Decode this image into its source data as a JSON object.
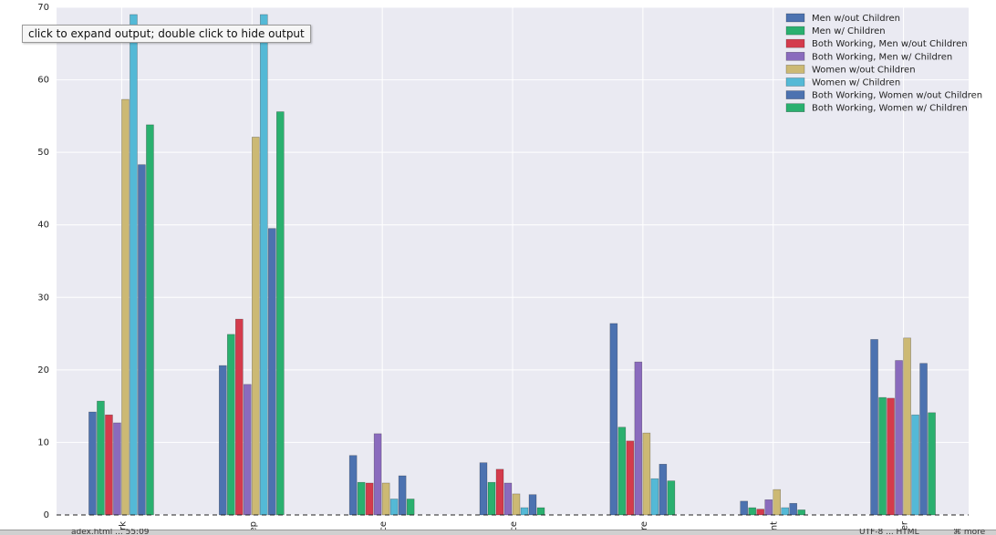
{
  "tooltip": {
    "text": "click to expand output; double click to hide output"
  },
  "status_bar": {
    "left": "adex.html ... 55:09",
    "right": "UTF-8 ... HTML",
    "far_right": "⌘ more"
  },
  "colors": {
    "plot_bg": "#eaeaf2",
    "grid": "#ffffff"
  },
  "chart_data": {
    "type": "bar",
    "title": "",
    "xlabel": "",
    "ylabel": "",
    "ylim": [
      0,
      70
    ],
    "yticks": [
      0,
      10,
      20,
      30,
      40,
      50,
      60,
      70
    ],
    "grid": true,
    "legend_position": "top-right",
    "baseline_style": "dashed",
    "categories": [
      "rk",
      "ep",
      "ce",
      "ce",
      "re",
      "nt",
      "er"
    ],
    "series": [
      {
        "name": "Men w/out Children",
        "color": "#4c72b0",
        "values": [
          14.2,
          20.6,
          8.2,
          7.2,
          26.4,
          1.9,
          24.2
        ]
      },
      {
        "name": "Men w/ Children",
        "color": "#2ab06f",
        "values": [
          15.7,
          24.9,
          4.5,
          4.5,
          12.1,
          1.0,
          16.2
        ]
      },
      {
        "name": "Both Working, Men w/out Children",
        "color": "#d43b4c",
        "values": [
          13.8,
          27.0,
          4.4,
          6.3,
          10.2,
          0.8,
          16.1
        ]
      },
      {
        "name": "Both Working, Men w/ Children",
        "color": "#8a6bbd",
        "values": [
          12.7,
          18.0,
          11.2,
          4.4,
          21.1,
          2.1,
          21.3
        ]
      },
      {
        "name": "Women w/out Children",
        "color": "#ccb974",
        "values": [
          57.3,
          52.1,
          4.4,
          2.9,
          11.3,
          3.5,
          24.4
        ]
      },
      {
        "name": "Women w/ Children",
        "color": "#54b9d6",
        "values": [
          69.0,
          69.0,
          2.2,
          1.0,
          5.0,
          1.0,
          13.8
        ]
      },
      {
        "name": "Both Working, Women w/out Children",
        "color": "#4c72b0",
        "values": [
          48.3,
          39.5,
          5.4,
          2.8,
          7.0,
          1.6,
          20.9
        ]
      },
      {
        "name": "Both Working, Women w/ Children",
        "color": "#2ab06f",
        "values": [
          53.8,
          55.6,
          2.2,
          1.0,
          4.7,
          0.7,
          14.1
        ]
      }
    ]
  }
}
